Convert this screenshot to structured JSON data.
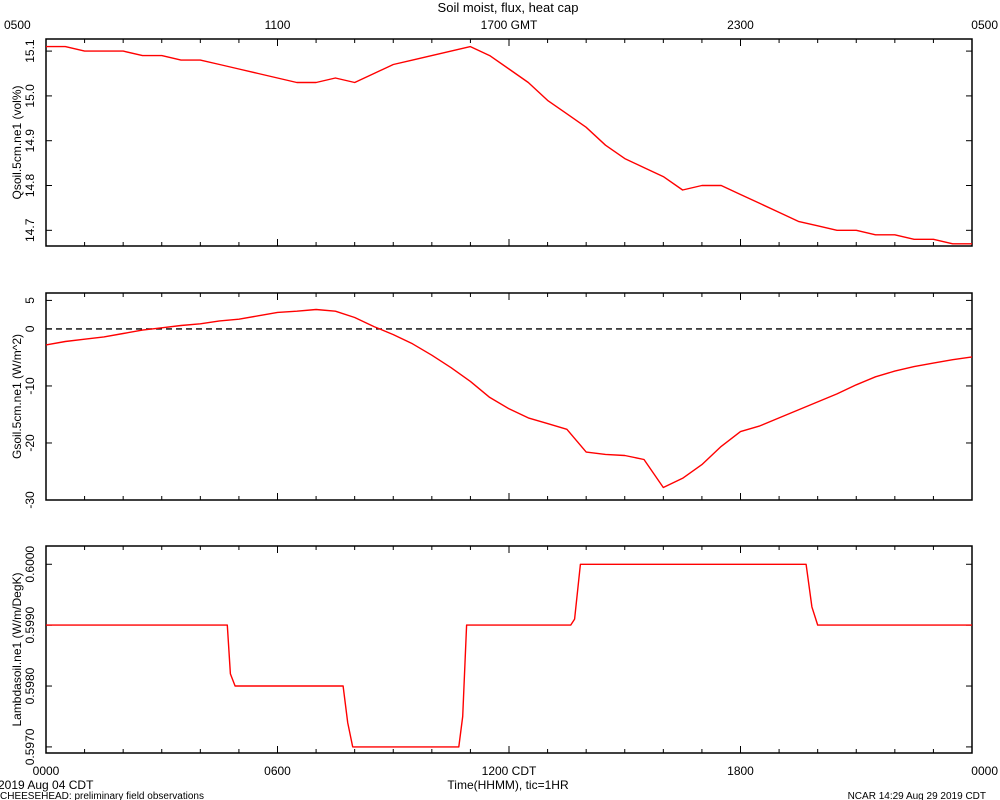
{
  "title": "Soil moist, flux, heat cap",
  "top_axis": {
    "tick_labels": [
      "0500",
      "1100",
      "1700 GMT",
      "2300",
      "0500"
    ]
  },
  "bottom_axis": {
    "tick_labels": [
      "0000",
      "0600",
      "1200 CDT",
      "1800",
      "0000"
    ],
    "xlabel": "Time(HHMM), tic=1HR"
  },
  "footer": {
    "date": "2019 Aug 04 CDT",
    "left_note": "CHEESEHEAD: preliminary field observations",
    "right_note": "NCAR 14:29 Aug 29 2019 CDT"
  },
  "colors": {
    "series": "#ff0000",
    "axis": "#000000",
    "zero_line": "#000000"
  },
  "chart_data": [
    {
      "type": "line",
      "ylabel": "Qsoil.5cm.ne1 (vol%)",
      "xlim": [
        0,
        24
      ],
      "ylim": [
        14.665,
        15.127
      ],
      "ytick_values": [
        14.7,
        14.8,
        14.9,
        15.0,
        15.1
      ],
      "ytick_labels": [
        "14.7",
        "14.8",
        "14.9",
        "15.0",
        "15.1"
      ],
      "series": [
        {
          "x": [
            0,
            0.5,
            1,
            1.5,
            2,
            2.5,
            3,
            3.5,
            4,
            4.5,
            5,
            5.5,
            6,
            6.5,
            7,
            7.5,
            8,
            8.5,
            9,
            9.5,
            10,
            10.5,
            11,
            11.5,
            12,
            12.5,
            13,
            13.5,
            14,
            14.5,
            15,
            15.5,
            16,
            16.5,
            17,
            17.5,
            18,
            18.5,
            19,
            19.5,
            20,
            20.5,
            21,
            21.5,
            22,
            22.5,
            23,
            23.5,
            24
          ],
          "y": [
            15.11,
            15.11,
            15.1,
            15.1,
            15.1,
            15.09,
            15.09,
            15.08,
            15.08,
            15.07,
            15.06,
            15.05,
            15.04,
            15.03,
            15.03,
            15.04,
            15.03,
            15.05,
            15.07,
            15.08,
            15.09,
            15.1,
            15.11,
            15.09,
            15.06,
            15.03,
            14.99,
            14.96,
            14.93,
            14.89,
            14.86,
            14.84,
            14.82,
            14.79,
            14.8,
            14.8,
            14.78,
            14.76,
            14.74,
            14.72,
            14.71,
            14.7,
            14.7,
            14.69,
            14.69,
            14.68,
            14.68,
            14.67,
            14.67
          ]
        }
      ]
    },
    {
      "type": "line",
      "ylabel": "Gsoil.5cm.ne1 (W/m^2)",
      "xlim": [
        0,
        24
      ],
      "ylim": [
        -30,
        6.3
      ],
      "ytick_values": [
        5,
        0,
        -10,
        -20,
        -30
      ],
      "ytick_labels": [
        "5",
        "0",
        "-10",
        "-20",
        "-30"
      ],
      "zero_line": 0,
      "series": [
        {
          "x": [
            0,
            0.5,
            1,
            1.5,
            2,
            2.5,
            3,
            3.5,
            4,
            4.5,
            5,
            5.5,
            6,
            6.5,
            7,
            7.5,
            8,
            8.5,
            9,
            9.5,
            10,
            10.5,
            11,
            11.5,
            12,
            12.5,
            13,
            13.5,
            14,
            14.5,
            15,
            15.5,
            16,
            16.5,
            17,
            17.5,
            18,
            18.5,
            19,
            19.5,
            20,
            20.5,
            21,
            21.5,
            22,
            22.5,
            23,
            23.5,
            24
          ],
          "y": [
            -2.8,
            -2.2,
            -1.8,
            -1.4,
            -0.8,
            -0.2,
            0.2,
            0.6,
            0.9,
            1.4,
            1.7,
            2.3,
            2.9,
            3.1,
            3.4,
            3.1,
            2.0,
            0.4,
            -1.0,
            -2.6,
            -4.6,
            -6.8,
            -9.2,
            -12.0,
            -14.0,
            -15.6,
            -16.6,
            -17.6,
            -21.6,
            -22.0,
            -22.2,
            -22.9,
            -27.8,
            -26.2,
            -23.8,
            -20.6,
            -18.0,
            -17.0,
            -15.6,
            -14.2,
            -12.8,
            -11.4,
            -9.8,
            -8.4,
            -7.4,
            -6.6,
            -6.0,
            -5.4,
            -4.9
          ]
        }
      ]
    },
    {
      "type": "line",
      "ylabel": "Lambdasoil.ne1 (W/m/DegK)",
      "xlim": [
        0,
        24
      ],
      "ylim": [
        0.5969,
        0.6003
      ],
      "ytick_values": [
        0.597,
        0.598,
        0.599,
        0.6
      ],
      "ytick_labels": [
        "0.5970",
        "0.5980",
        "0.5990",
        "0.6000"
      ],
      "series": [
        {
          "x": [
            0,
            4.7,
            4.78,
            4.9,
            7.7,
            7.82,
            7.95,
            10.7,
            10.8,
            10.9,
            13.6,
            13.7,
            13.85,
            19.7,
            19.85,
            20.0,
            24
          ],
          "y": [
            0.599,
            0.599,
            0.5982,
            0.598,
            0.598,
            0.5974,
            0.597,
            0.597,
            0.5975,
            0.599,
            0.599,
            0.5991,
            0.6,
            0.6,
            0.5993,
            0.599,
            0.599
          ]
        }
      ]
    }
  ]
}
